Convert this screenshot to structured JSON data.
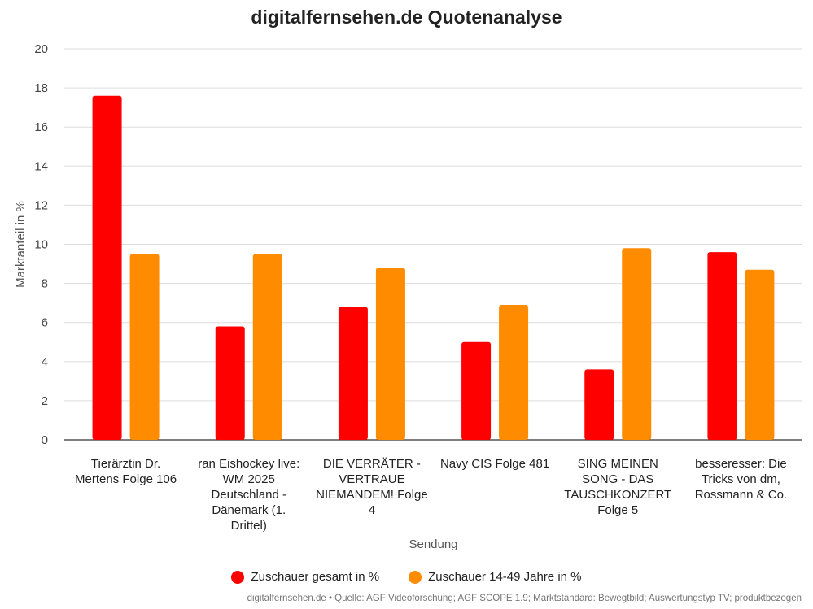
{
  "chart_data": {
    "type": "bar",
    "title": "digitalfernsehen.de Quotenanalyse",
    "xlabel": "Sendung",
    "ylabel": "Marktanteil in %",
    "ylim": [
      0,
      20
    ],
    "yticks": [
      "0",
      "2",
      "4",
      "6",
      "8",
      "10",
      "12",
      "14",
      "16",
      "18",
      "20"
    ],
    "grid": true,
    "legend_position": "bottom",
    "categories": [
      [
        "Tierärztin Dr.",
        "Mertens Folge 106"
      ],
      [
        "ran Eishockey live:",
        "WM 2025",
        "Deutschland -",
        "Dänemark (1.",
        "Drittel)"
      ],
      [
        "DIE VERRÄTER -",
        "VERTRAUE",
        "NIEMANDEM! Folge",
        "4"
      ],
      [
        "Navy CIS Folge 481"
      ],
      [
        "SING MEINEN",
        "SONG - DAS",
        "TAUSCHKONZERT",
        "Folge 5"
      ],
      [
        "besseresser: Die",
        "Tricks von dm,",
        "Rossmann & Co."
      ]
    ],
    "series": [
      {
        "name": "Zuschauer gesamt in %",
        "color": "#ff0000",
        "values": [
          17.6,
          5.8,
          6.8,
          5.0,
          3.6,
          9.6
        ]
      },
      {
        "name": "Zuschauer 14-49 Jahre in %",
        "color": "#ff8c00",
        "values": [
          9.5,
          9.5,
          8.8,
          6.9,
          9.8,
          8.7
        ]
      }
    ]
  },
  "source": "digitalfernsehen.de • Quelle: AGF Videoforschung; AGF SCOPE 1.9; Marktstandard: Bewegtbild; Auswertungstyp TV; produktbezogen"
}
